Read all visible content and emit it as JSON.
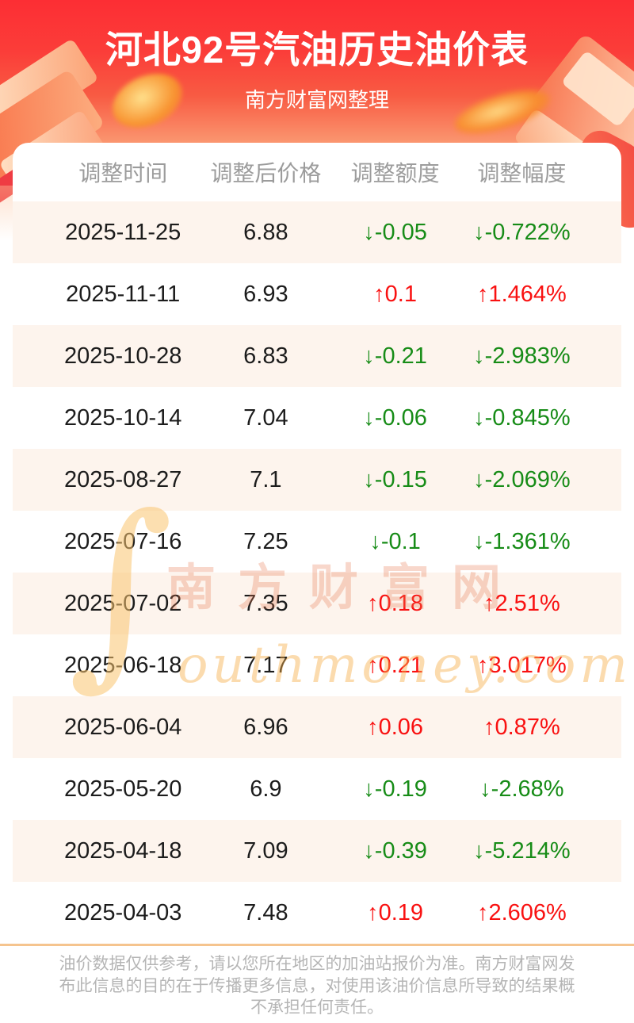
{
  "header": {
    "title": "河北92号汽油历史油价表",
    "subtitle": "南方财富网整理"
  },
  "table": {
    "columns": [
      "调整时间",
      "调整后价格",
      "调整额度",
      "调整幅度"
    ],
    "rows": [
      {
        "date": "2025-11-25",
        "price": "6.88",
        "change": "↓-0.05",
        "percent": "↓-0.722%",
        "trend": "down"
      },
      {
        "date": "2025-11-11",
        "price": "6.93",
        "change": "↑0.1",
        "percent": "↑1.464%",
        "trend": "up"
      },
      {
        "date": "2025-10-28",
        "price": "6.83",
        "change": "↓-0.21",
        "percent": "↓-2.983%",
        "trend": "down"
      },
      {
        "date": "2025-10-14",
        "price": "7.04",
        "change": "↓-0.06",
        "percent": "↓-0.845%",
        "trend": "down"
      },
      {
        "date": "2025-08-27",
        "price": "7.1",
        "change": "↓-0.15",
        "percent": "↓-2.069%",
        "trend": "down"
      },
      {
        "date": "2025-07-16",
        "price": "7.25",
        "change": "↓-0.1",
        "percent": "↓-1.361%",
        "trend": "down"
      },
      {
        "date": "2025-07-02",
        "price": "7.35",
        "change": "↑0.18",
        "percent": "↑2.51%",
        "trend": "up"
      },
      {
        "date": "2025-06-18",
        "price": "7.17",
        "change": "↑0.21",
        "percent": "↑3.017%",
        "trend": "up"
      },
      {
        "date": "2025-06-04",
        "price": "6.96",
        "change": "↑0.06",
        "percent": "↑0.87%",
        "trend": "up"
      },
      {
        "date": "2025-05-20",
        "price": "6.9",
        "change": "↓-0.19",
        "percent": "↓-2.68%",
        "trend": "down"
      },
      {
        "date": "2025-04-18",
        "price": "7.09",
        "change": "↓-0.39",
        "percent": "↓-5.214%",
        "trend": "down"
      },
      {
        "date": "2025-04-03",
        "price": "7.48",
        "change": "↑0.19",
        "percent": "↑2.606%",
        "trend": "up"
      }
    ]
  },
  "watermark": {
    "swoosh": "∫",
    "cn": "南方财富网",
    "en": "outhmoney.com"
  },
  "footer": {
    "disclaimer": "油价数据仅供参考，请以您所在地区的加油站报价为准。南方财富网发布此信息的目的在于传播更多信息，对使用该油价信息所导致的结果概不承担任何责任。"
  },
  "colors": {
    "up": "#f91111",
    "down": "#178c17",
    "banner_red": "#fc2e34",
    "row_alt": "#fdf4ed",
    "footer_rule": "#f5c48e"
  }
}
